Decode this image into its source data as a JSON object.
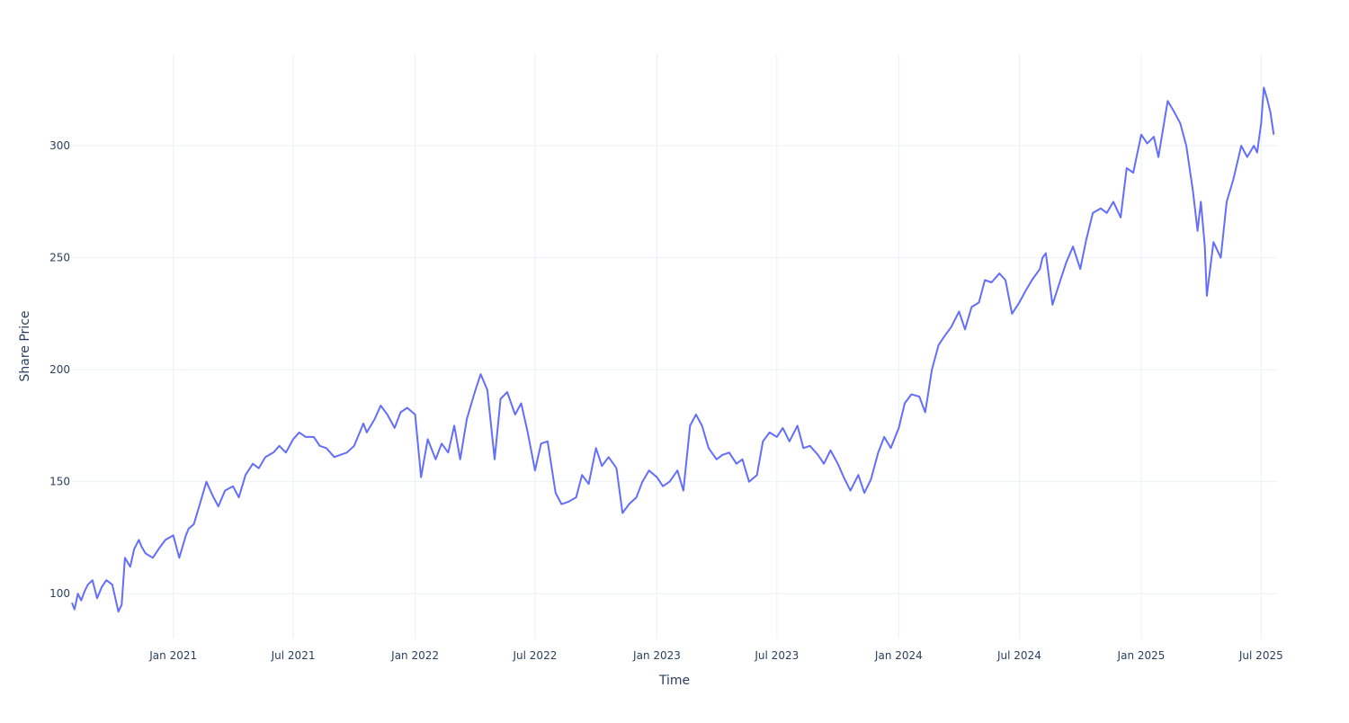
{
  "chart_data": {
    "type": "line",
    "title": "",
    "xlabel": "Time",
    "ylabel": "Share Price",
    "ylim": [
      80,
      341
    ],
    "xlim": [
      "2020-08-01",
      "2025-07-25"
    ],
    "x_tick_labels": [
      "Jan 2021",
      "Jul 2021",
      "Jan 2022",
      "Jul 2022",
      "Jan 2023",
      "Jul 2023",
      "Jan 2024",
      "Jul 2024",
      "Jan 2025",
      "Jul 2025"
    ],
    "x_ticks": [
      "2021-01-01",
      "2021-07-01",
      "2022-01-01",
      "2022-07-01",
      "2023-01-01",
      "2023-07-01",
      "2024-01-01",
      "2024-07-01",
      "2025-01-01",
      "2025-07-01"
    ],
    "y_ticks": [
      100,
      150,
      200,
      250,
      300
    ],
    "y_tick_labels": [
      "100",
      "150",
      "200",
      "250",
      "300"
    ],
    "grid": true,
    "legend": "none",
    "line_color": "#636efa",
    "series": [
      {
        "x": [
          "2020-08-01",
          "2020-08-05",
          "2020-08-10",
          "2020-08-15",
          "2020-08-20",
          "2020-08-25",
          "2020-09-01",
          "2020-09-08",
          "2020-09-15",
          "2020-09-22",
          "2020-10-01",
          "2020-10-10",
          "2020-10-15",
          "2020-10-20",
          "2020-10-28",
          "2020-11-03",
          "2020-11-10",
          "2020-11-14",
          "2020-11-20",
          "2020-12-01",
          "2020-12-10",
          "2020-12-20",
          "2021-01-01",
          "2021-01-10",
          "2021-01-20",
          "2021-01-24",
          "2021-02-01",
          "2021-02-10",
          "2021-02-20",
          "2021-03-01",
          "2021-03-10",
          "2021-03-20",
          "2021-04-01",
          "2021-04-10",
          "2021-04-20",
          "2021-05-01",
          "2021-05-10",
          "2021-05-20",
          "2021-06-01",
          "2021-06-10",
          "2021-06-20",
          "2021-07-01",
          "2021-07-10",
          "2021-07-20",
          "2021-08-01",
          "2021-08-10",
          "2021-08-20",
          "2021-09-01",
          "2021-09-10",
          "2021-09-20",
          "2021-10-01",
          "2021-10-15",
          "2021-10-20",
          "2021-11-01",
          "2021-11-10",
          "2021-11-20",
          "2021-12-01",
          "2021-12-10",
          "2021-12-20",
          "2022-01-01",
          "2022-01-10",
          "2022-01-20",
          "2022-02-01",
          "2022-02-10",
          "2022-02-20",
          "2022-03-01",
          "2022-03-10",
          "2022-03-20",
          "2022-04-01",
          "2022-04-10",
          "2022-04-20",
          "2022-05-01",
          "2022-05-10",
          "2022-05-20",
          "2022-06-01",
          "2022-06-10",
          "2022-06-20",
          "2022-07-01",
          "2022-07-10",
          "2022-07-20",
          "2022-08-01",
          "2022-08-10",
          "2022-08-20",
          "2022-09-01",
          "2022-09-10",
          "2022-09-20",
          "2022-10-01",
          "2022-10-10",
          "2022-10-20",
          "2022-11-01",
          "2022-11-10",
          "2022-11-20",
          "2022-12-01",
          "2022-12-10",
          "2022-12-20",
          "2023-01-01",
          "2023-01-10",
          "2023-01-20",
          "2023-02-01",
          "2023-02-10",
          "2023-02-20",
          "2023-03-01",
          "2023-03-10",
          "2023-03-20",
          "2023-04-01",
          "2023-04-10",
          "2023-04-20",
          "2023-05-01",
          "2023-05-10",
          "2023-05-20",
          "2023-06-01",
          "2023-06-10",
          "2023-06-20",
          "2023-07-01",
          "2023-07-10",
          "2023-07-20",
          "2023-08-01",
          "2023-08-10",
          "2023-08-20",
          "2023-09-01",
          "2023-09-10",
          "2023-09-20",
          "2023-10-01",
          "2023-10-10",
          "2023-10-20",
          "2023-11-01",
          "2023-11-10",
          "2023-11-20",
          "2023-12-01",
          "2023-12-10",
          "2023-12-20",
          "2024-01-01",
          "2024-01-10",
          "2024-01-20",
          "2024-02-01",
          "2024-02-10",
          "2024-02-20",
          "2024-03-01",
          "2024-03-10",
          "2024-03-20",
          "2024-04-01",
          "2024-04-10",
          "2024-04-20",
          "2024-05-01",
          "2024-05-10",
          "2024-05-20",
          "2024-06-01",
          "2024-06-10",
          "2024-06-20",
          "2024-07-01",
          "2024-07-10",
          "2024-07-20",
          "2024-08-01",
          "2024-08-05",
          "2024-08-10",
          "2024-08-20",
          "2024-09-01",
          "2024-09-10",
          "2024-09-20",
          "2024-10-01",
          "2024-10-10",
          "2024-10-20",
          "2024-11-01",
          "2024-11-10",
          "2024-11-20",
          "2024-12-01",
          "2024-12-10",
          "2024-12-20",
          "2025-01-01",
          "2025-01-10",
          "2025-01-20",
          "2025-01-27",
          "2025-02-01",
          "2025-02-10",
          "2025-02-20",
          "2025-03-01",
          "2025-03-10",
          "2025-03-20",
          "2025-03-27",
          "2025-04-01",
          "2025-04-07",
          "2025-04-10",
          "2025-04-20",
          "2025-05-01",
          "2025-05-10",
          "2025-05-20",
          "2025-06-01",
          "2025-06-10",
          "2025-06-20",
          "2025-06-25",
          "2025-07-01",
          "2025-07-05",
          "2025-07-10",
          "2025-07-15",
          "2025-07-20"
        ],
        "values": [
          96,
          93,
          100,
          97,
          101,
          104,
          106,
          98,
          103,
          106,
          104,
          92,
          95,
          116,
          112,
          120,
          124,
          121,
          118,
          116,
          120,
          124,
          126,
          116,
          126,
          129,
          131,
          140,
          150,
          144,
          139,
          146,
          148,
          143,
          153,
          158,
          156,
          161,
          163,
          166,
          163,
          169,
          172,
          170,
          170,
          166,
          165,
          161,
          162,
          163,
          166,
          176,
          172,
          178,
          184,
          180,
          174,
          181,
          183,
          180,
          152,
          169,
          160,
          167,
          163,
          175,
          160,
          178,
          190,
          198,
          191,
          160,
          187,
          190,
          180,
          185,
          172,
          155,
          167,
          168,
          145,
          140,
          141,
          143,
          153,
          149,
          165,
          157,
          161,
          156,
          136,
          140,
          143,
          150,
          155,
          152,
          148,
          150,
          155,
          146,
          175,
          180,
          175,
          165,
          160,
          162,
          163,
          158,
          160,
          150,
          153,
          168,
          172,
          170,
          174,
          168,
          175,
          165,
          166,
          162,
          158,
          164,
          158,
          152,
          146,
          153,
          145,
          151,
          163,
          170,
          165,
          174,
          185,
          189,
          188,
          181,
          200,
          211,
          215,
          219,
          226,
          218,
          228,
          230,
          240,
          239,
          243,
          240,
          225,
          230,
          235,
          240,
          245,
          250,
          252,
          229,
          240,
          248,
          255,
          245,
          258,
          270,
          272,
          270,
          275,
          268,
          290,
          288,
          305,
          301,
          304,
          295,
          304,
          320,
          315,
          310,
          300,
          280,
          262,
          275,
          255,
          233,
          257,
          250,
          275,
          285,
          300,
          295,
          300,
          297,
          310,
          326,
          321,
          315,
          305
        ]
      }
    ]
  }
}
